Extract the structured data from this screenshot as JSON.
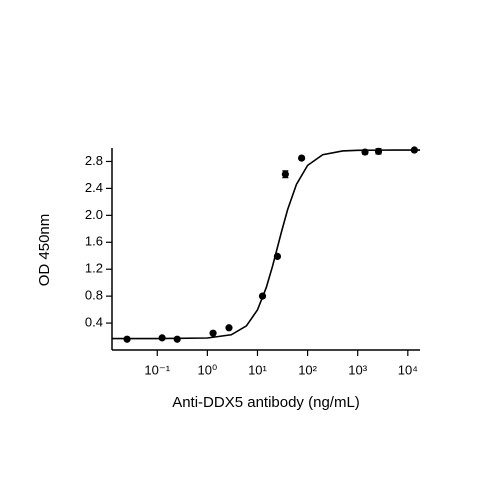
{
  "chart_data": {
    "type": "scatter",
    "x_label": "Anti-DDX5 antibody (ng/mL)",
    "y_label": "OD 450nm",
    "xlog": true,
    "xlim": [
      0.0125,
      17500
    ],
    "ylim": [
      0,
      3.0
    ],
    "xticks": [
      {
        "value": 0.1,
        "label": "10⁻¹"
      },
      {
        "value": 1,
        "label": "10⁰"
      },
      {
        "value": 10,
        "label": "10¹"
      },
      {
        "value": 100,
        "label": "10²"
      },
      {
        "value": 1000,
        "label": "10³"
      },
      {
        "value": 10000,
        "label": "10⁴"
      }
    ],
    "yticks": [
      0.4,
      0.8,
      1.2,
      1.6,
      {
        "value": 2,
        "label": "2.0"
      },
      2.4,
      2.8
    ],
    "color": "#000000",
    "x": [
      0.025,
      0.125,
      0.25,
      1.3,
      2.7,
      12.6,
      25,
      36,
      76,
      1400,
      2600,
      13500
    ],
    "values": [
      0.16,
      0.18,
      0.16,
      0.25,
      0.33,
      0.8,
      1.39,
      2.61,
      2.85,
      2.94,
      2.95,
      2.97
    ],
    "errors": [
      0.01,
      0.01,
      0.01,
      0.01,
      0.01,
      0.02,
      0.02,
      0.05,
      0.02,
      0.03,
      0.04,
      0.01
    ],
    "curve": {
      "x": [
        0.0125,
        0.1,
        1,
        3,
        6,
        10,
        15,
        20,
        30,
        40,
        60,
        100,
        200,
        500,
        1000,
        5000,
        17500
      ],
      "values": [
        0.17,
        0.17,
        0.178,
        0.226,
        0.357,
        0.596,
        0.929,
        1.247,
        1.749,
        2.086,
        2.461,
        2.742,
        2.9,
        2.956,
        2.965,
        2.97,
        2.97
      ]
    }
  }
}
